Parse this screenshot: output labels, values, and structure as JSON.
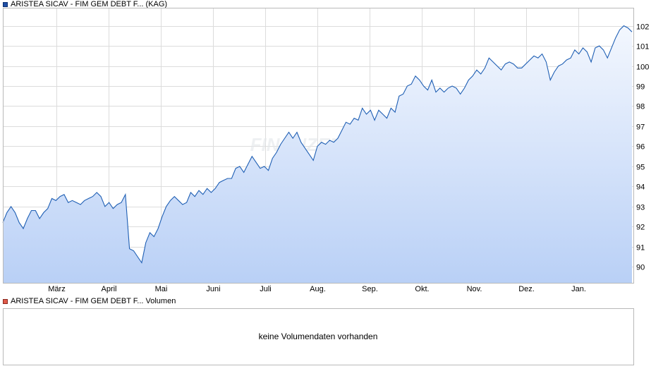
{
  "price_legend": {
    "label": "ARISTEA SICAV - FIM GEM DEBT F... (KAG)",
    "color": "#1f4fa6"
  },
  "volume_legend": {
    "label": "ARISTEA SICAV - FIM GEM DEBT F... Volumen",
    "color": "#e05a4a"
  },
  "volume_panel": {
    "message": "keine Volumendaten vorhanden"
  },
  "watermark": "FINANZEN.NET",
  "chart_data": {
    "type": "area",
    "x_tick_labels": [
      "März",
      "April",
      "Mai",
      "Juni",
      "Juli",
      "Aug.",
      "Sep.",
      "Okt.",
      "Nov.",
      "Dez.",
      "Jan."
    ],
    "y_ticks": [
      90,
      91,
      92,
      93,
      94,
      95,
      96,
      97,
      98,
      99,
      100,
      101,
      102
    ],
    "ylim": [
      89.2,
      102.9
    ],
    "grid": true,
    "line_color": "#1f5fb4",
    "fill_top_color": "#f3f7fe",
    "fill_bottom_color": "#b9d0f6",
    "series": [
      {
        "values": [
          92.2,
          92.7,
          93.0,
          92.7,
          92.2,
          91.9,
          92.4,
          92.8,
          92.8,
          92.4,
          92.7,
          92.9,
          93.4,
          93.3,
          93.5,
          93.6,
          93.2,
          93.3,
          93.2,
          93.1,
          93.3,
          93.4,
          93.5,
          93.7,
          93.5,
          93.0,
          93.2,
          92.9,
          93.1,
          93.2,
          93.6,
          90.9,
          90.8,
          90.5,
          90.2,
          91.2,
          91.7,
          91.5,
          91.9,
          92.5,
          93.0,
          93.3,
          93.5,
          93.3,
          93.1,
          93.2,
          93.7,
          93.5,
          93.8,
          93.6,
          93.9,
          93.7,
          93.9,
          94.2,
          94.3,
          94.4,
          94.4,
          94.9,
          95.0,
          94.7,
          95.1,
          95.5,
          95.2,
          94.9,
          95.0,
          94.8,
          95.4,
          95.7,
          96.1,
          96.4,
          96.7,
          96.4,
          96.7,
          96.2,
          95.9,
          95.6,
          95.3,
          96.0,
          96.2,
          96.1,
          96.3,
          96.2,
          96.4,
          96.8,
          97.2,
          97.1,
          97.4,
          97.3,
          97.9,
          97.6,
          97.8,
          97.3,
          97.8,
          97.6,
          97.4,
          97.9,
          97.7,
          98.5,
          98.6,
          99.0,
          99.1,
          99.5,
          99.3,
          99.0,
          98.8,
          99.3,
          98.7,
          98.9,
          98.7,
          98.9,
          99.0,
          98.9,
          98.6,
          98.9,
          99.3,
          99.5,
          99.8,
          99.6,
          99.9,
          100.4,
          100.2,
          100.0,
          99.8,
          100.1,
          100.2,
          100.1,
          99.9,
          99.9,
          100.1,
          100.3,
          100.5,
          100.4,
          100.6,
          100.2,
          99.3,
          99.7,
          100.0,
          100.1,
          100.3,
          100.4,
          100.8,
          100.6,
          100.9,
          100.7,
          100.2,
          100.9,
          101.0,
          100.8,
          100.4,
          100.9,
          101.4,
          101.8,
          102.0,
          101.9,
          101.7
        ]
      }
    ]
  }
}
